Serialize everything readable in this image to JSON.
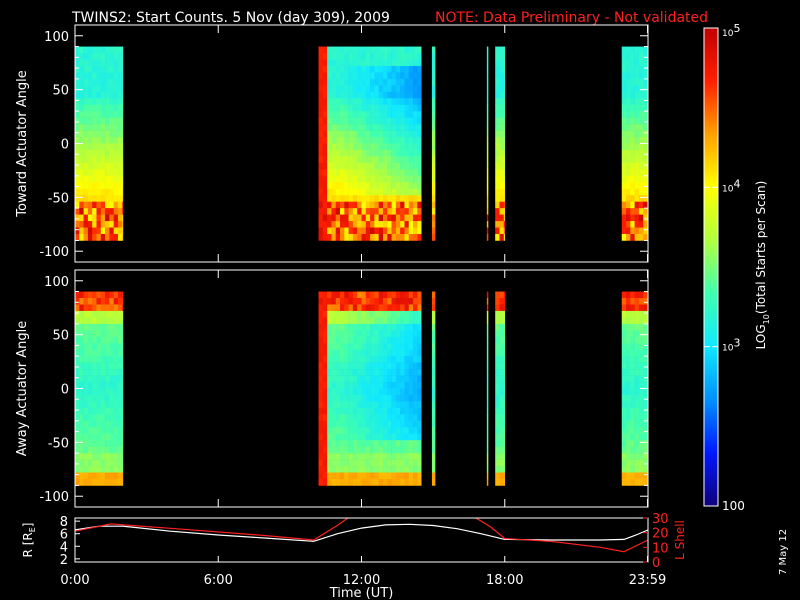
{
  "title": {
    "main": "TWINS2: Start Counts.  5 Nov (day 309), 2009",
    "note": "NOTE: Data Preliminary - Not validated",
    "note_color": "#ff2020"
  },
  "side_date": "7 May 12",
  "colorbar": {
    "label_prefix": "LOG",
    "label_sub": "10",
    "label_suffix": "(Total Starts per Scan)",
    "ticks": [
      {
        "value": 100000,
        "mantissa": "10",
        "exp": "5"
      },
      {
        "value": 10000,
        "mantissa": "10",
        "exp": "4"
      },
      {
        "value": 1000,
        "mantissa": "10",
        "exp": "3"
      },
      {
        "value": 100,
        "mantissa": "100",
        "exp": ""
      }
    ],
    "range_log": [
      2,
      5
    ],
    "colors": [
      "#10007a",
      "#0018ff",
      "#0090ff",
      "#10e8ff",
      "#40ffb0",
      "#b0ff40",
      "#ffff00",
      "#ffa000",
      "#ff2000",
      "#c00000"
    ]
  },
  "chart_data": [
    {
      "type": "heatmap",
      "ylabel": "Toward Actuator Angle",
      "ylim": [
        -110,
        110
      ],
      "yticks": [
        100,
        50,
        0,
        -50,
        -100
      ],
      "xlim_hours": [
        0,
        24
      ],
      "data_intervals_hours": [
        [
          0,
          2.0
        ],
        [
          10.2,
          14.5
        ],
        [
          14.95,
          15.08
        ],
        [
          17.25,
          17.3
        ],
        [
          17.6,
          18.0
        ],
        [
          22.9,
          24
        ]
      ],
      "angle_extent": [
        -88,
        90
      ],
      "profile": "toward"
    },
    {
      "type": "heatmap",
      "ylabel": "Away Actuator Angle",
      "ylim": [
        -110,
        110
      ],
      "yticks": [
        100,
        50,
        0,
        -50,
        -100
      ],
      "xlim_hours": [
        0,
        24
      ],
      "data_intervals_hours": [
        [
          0,
          2.0
        ],
        [
          10.2,
          14.5
        ],
        [
          14.95,
          15.08
        ],
        [
          17.25,
          17.3
        ],
        [
          17.6,
          18.0
        ],
        [
          22.9,
          24
        ]
      ],
      "angle_extent": [
        -88,
        90
      ],
      "profile": "away"
    },
    {
      "type": "line",
      "ylabel_left_main": "R [R",
      "ylabel_left_sub": "E",
      "ylabel_left_end": "]",
      "ylabel_right": "L Shell",
      "yticks_left": [
        8,
        6,
        4,
        2
      ],
      "ylim_left": [
        1.5,
        8.5
      ],
      "yticks_right": [
        30,
        20,
        10,
        0
      ],
      "ylim_right": [
        0,
        30
      ],
      "right_color": "#ff2020",
      "xlabel": "Time (UT)",
      "xticks": [
        {
          "hour": 0,
          "label": "0:00"
        },
        {
          "hour": 6,
          "label": "6:00"
        },
        {
          "hour": 12,
          "label": "12:00"
        },
        {
          "hour": 18,
          "label": "18:00"
        },
        {
          "hour": 23.98,
          "label": "23:59"
        }
      ],
      "series": [
        {
          "axis": "left",
          "color": "#ffffff",
          "x": [
            0,
            1,
            2,
            4,
            6,
            8,
            10.0,
            11,
            12,
            13,
            14,
            15,
            16,
            17,
            18,
            20,
            22,
            23,
            23.5,
            24
          ],
          "y": [
            6.6,
            7.2,
            7.2,
            6.4,
            5.8,
            5.3,
            4.8,
            6.0,
            6.9,
            7.4,
            7.5,
            7.3,
            6.8,
            6.0,
            5.1,
            5.0,
            5.0,
            5.1,
            5.8,
            6.6
          ]
        },
        {
          "axis": "right",
          "color": "#ff2020",
          "x": [
            0,
            1.5,
            4,
            8,
            10.0,
            11.0,
            11.6
          ],
          "y": [
            21,
            26,
            23,
            18,
            15,
            25,
            32
          ]
        },
        {
          "axis": "right",
          "color": "#ff2020",
          "x": [
            16.6,
            17.4,
            18.0,
            20,
            22,
            23,
            24
          ],
          "y": [
            32,
            24,
            16,
            14,
            10,
            7,
            15
          ]
        }
      ]
    }
  ]
}
